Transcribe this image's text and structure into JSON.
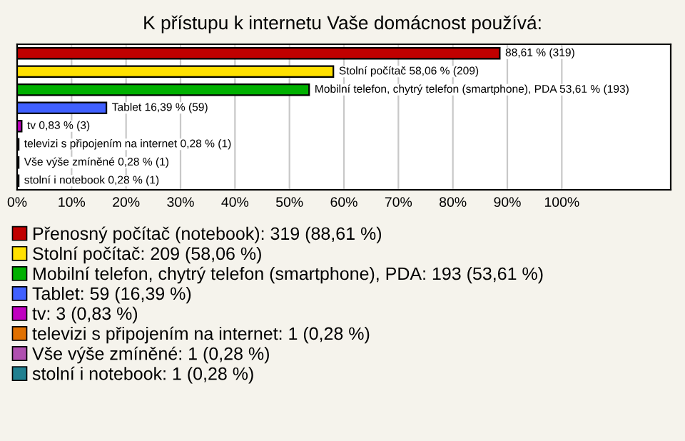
{
  "chart_data": {
    "type": "bar",
    "orientation": "horizontal",
    "title": "K přístupu k internetu Vaše domácnost používá:",
    "categories": [
      null,
      null,
      null,
      null,
      null,
      null,
      null,
      null
    ],
    "series": [
      {
        "name": "Přenosný počítač (notebook): 319 (88,61 %)",
        "color": "#c00000",
        "values": [
          88.61,
          null,
          null,
          null,
          null,
          null,
          null,
          null
        ],
        "value_labels": [
          "88,61 % (319)",
          null,
          null,
          null,
          null,
          null,
          null,
          null
        ]
      },
      {
        "name": "Stolní počítač: 209 (58,06 %)",
        "color": "#ffe000",
        "values": [
          null,
          58.06,
          null,
          null,
          null,
          null,
          null,
          null
        ],
        "value_labels": [
          null,
          "Stolní počítač 58,06 % (209)",
          null,
          null,
          null,
          null,
          null,
          null
        ]
      },
      {
        "name": "Mobilní telefon, chytrý telefon (smartphone), PDA: 193 (53,61 %)",
        "color": "#00b000",
        "values": [
          null,
          null,
          53.61,
          null,
          null,
          null,
          null,
          null
        ],
        "value_labels": [
          null,
          null,
          "Mobilní telefon, chytrý telefon (smartphone), PDA 53,61 % (193)",
          null,
          null,
          null,
          null,
          null
        ]
      },
      {
        "name": "Tablet: 59 (16,39 %)",
        "color": "#4060ff",
        "values": [
          null,
          null,
          null,
          16.39,
          null,
          null,
          null,
          null
        ],
        "value_labels": [
          null,
          null,
          null,
          "Tablet 16,39 % (59)",
          null,
          null,
          null,
          null
        ]
      },
      {
        "name": "tv: 3 (0,83 %)",
        "color": "#c000c0",
        "values": [
          null,
          null,
          null,
          null,
          0.83,
          null,
          null,
          null
        ],
        "value_labels": [
          null,
          null,
          null,
          null,
          "tv 0,83 % (3)",
          null,
          null,
          null
        ]
      },
      {
        "name": "televizi s připojením na internet: 1 (0,28 %)",
        "color": "#e07000",
        "values": [
          null,
          null,
          null,
          null,
          null,
          0.28,
          null,
          null
        ],
        "value_labels": [
          null,
          null,
          null,
          null,
          null,
          "televizi s připojením na internet 0,28 % (1)",
          null,
          null
        ]
      },
      {
        "name": "Vše výše zmíněné: 1 (0,28 %)",
        "color": "#b050b0",
        "values": [
          null,
          null,
          null,
          null,
          null,
          null,
          0.28,
          null
        ],
        "value_labels": [
          null,
          null,
          null,
          null,
          null,
          null,
          "Vše výše zmíněné 0,28 % (1)",
          null
        ]
      },
      {
        "name": "stolní i notebook: 1 (0,28 %)",
        "color": "#208090",
        "values": [
          null,
          null,
          null,
          null,
          null,
          null,
          null,
          0.28
        ],
        "value_labels": [
          null,
          null,
          null,
          null,
          null,
          null,
          null,
          "stolní i notebook 0,28 % (1)"
        ]
      }
    ],
    "xlim": [
      0,
      120
    ],
    "xticks": [
      {
        "value": 0,
        "label": "0%"
      },
      {
        "value": 10,
        "label": "10%"
      },
      {
        "value": 20,
        "label": "20%"
      },
      {
        "value": 30,
        "label": "30%"
      },
      {
        "value": 40,
        "label": "40%"
      },
      {
        "value": 50,
        "label": "50%"
      },
      {
        "value": 60,
        "label": "60%"
      },
      {
        "value": 70,
        "label": "70%"
      },
      {
        "value": 80,
        "label": "80%"
      },
      {
        "value": 90,
        "label": "90%"
      },
      {
        "value": 100,
        "label": "100%"
      }
    ],
    "grid": "x",
    "legend": "bottom",
    "tick_labels": "x"
  }
}
